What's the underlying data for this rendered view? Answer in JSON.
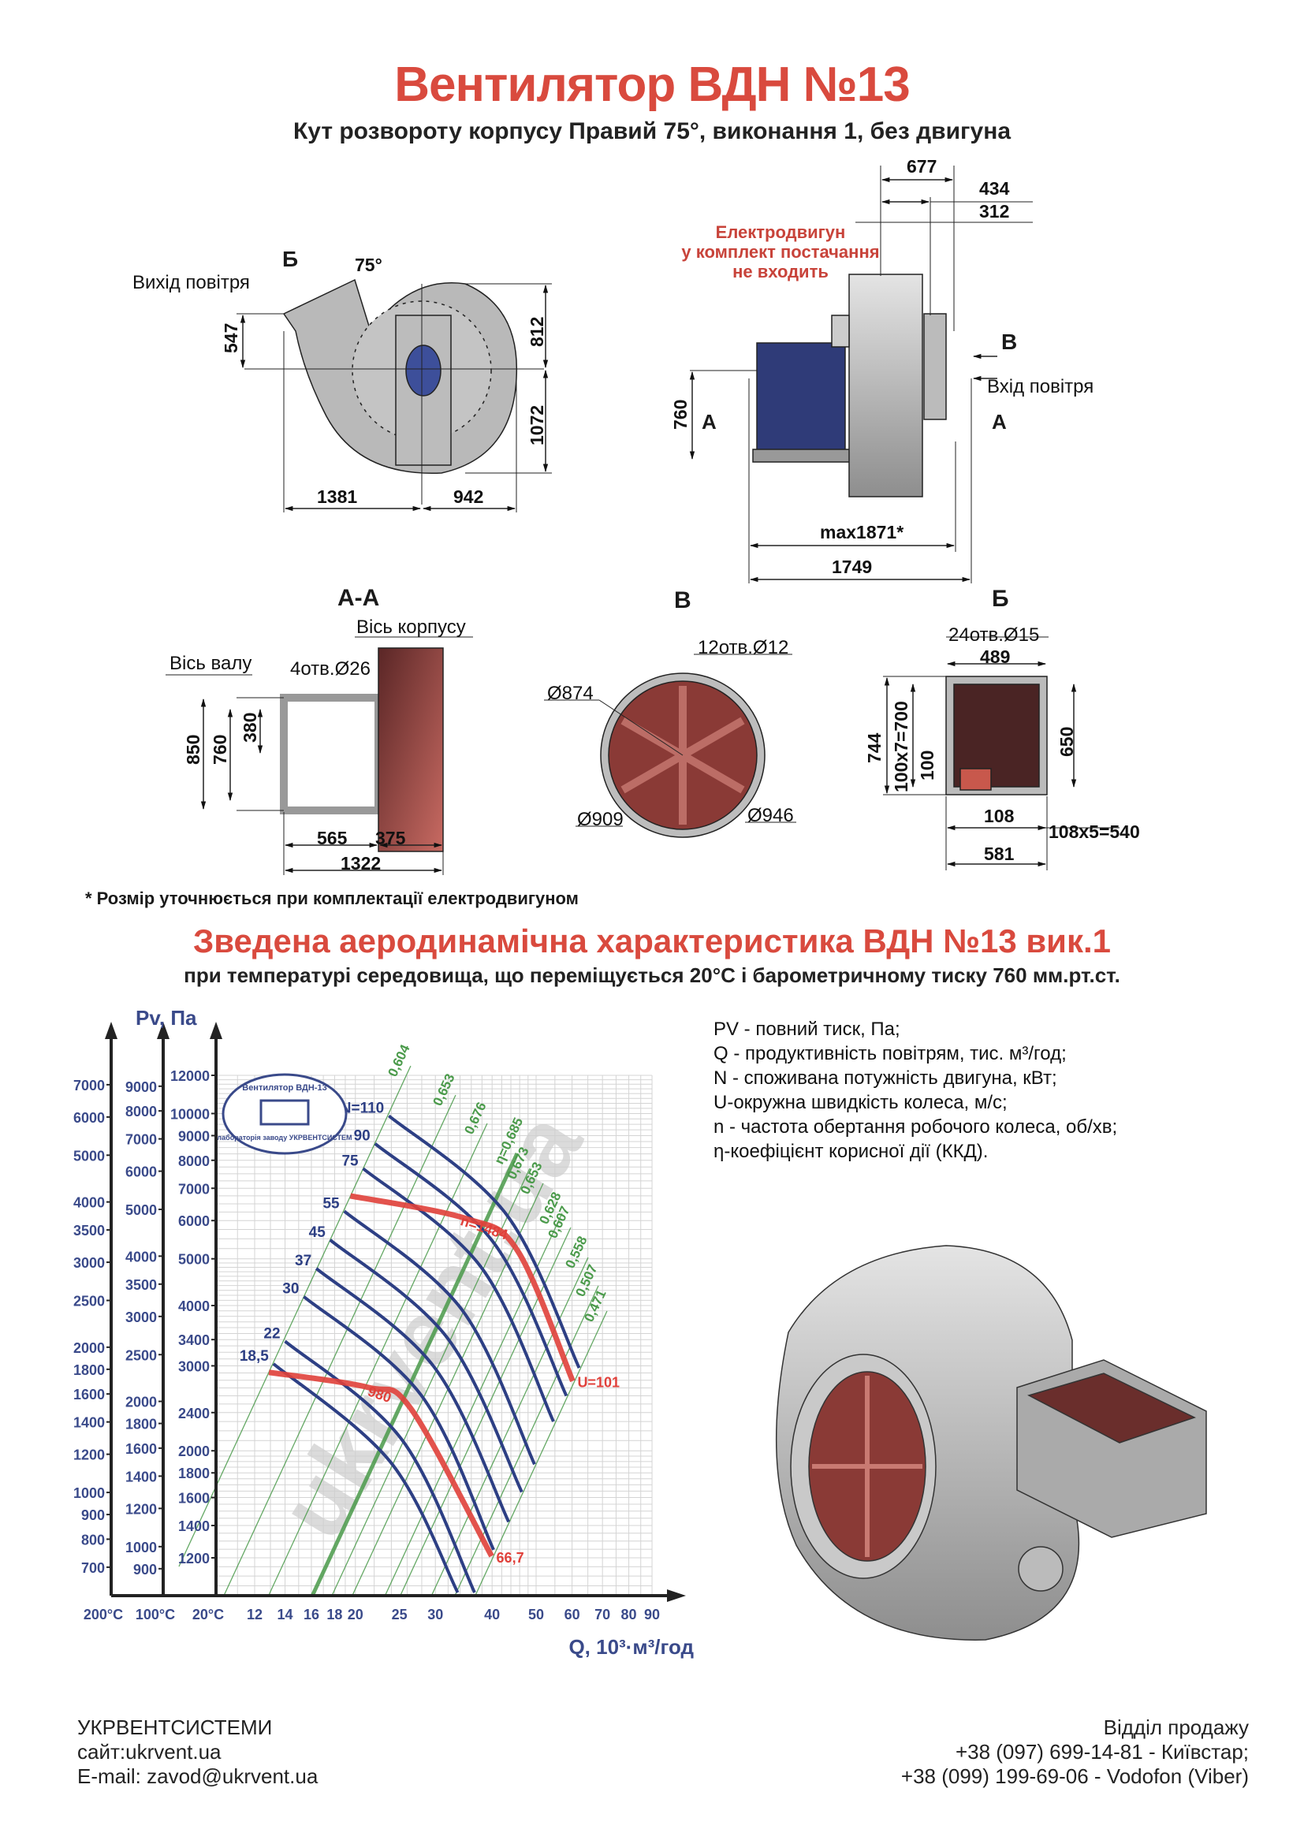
{
  "header": {
    "title": "Вентилятор  ВДН №13",
    "subtitle": "Кут розвороту корпусу Правий 75°, виконання 1, без двигуна"
  },
  "front_view": {
    "outlet_label": "Вихід повітря",
    "section_mark": "Б",
    "angle": "75°",
    "dims": {
      "d547": "547",
      "d812": "812",
      "d1072": "1072",
      "d1381": "1381",
      "d942": "942"
    }
  },
  "side_view": {
    "motor_note": [
      "Електродвигун",
      "у комплект постачання",
      "не входить"
    ],
    "inlet_label": "Вхід повітря",
    "section_b": "В",
    "section_a": "А",
    "dims": {
      "d677": "677",
      "d434": "434",
      "d312": "312",
      "d760": "760",
      "max": "max1871*",
      "d1749": "1749"
    }
  },
  "section_aa": {
    "title": "А-А",
    "housing_axis": "Вісь корпусу",
    "shaft_axis": "Вісь валу",
    "holes": "4отв.Ø26",
    "dims": {
      "d850": "850",
      "d760": "760",
      "d380": "380",
      "d565": "565",
      "d375": "375",
      "d1322": "1322"
    }
  },
  "section_b": {
    "title": "В",
    "holes": "12отв.Ø12",
    "d874": "Ø874",
    "d909": "Ø909",
    "d946": "Ø946"
  },
  "section_bb": {
    "title": "Б",
    "holes": "24отв.Ø15",
    "dims": {
      "d489": "489",
      "d744": "744",
      "d700": "100x7=700",
      "d100": "100",
      "d650": "650",
      "d108": "108",
      "d540": "108x5=540",
      "d581": "581"
    }
  },
  "footnote": "* Розмір уточнюється при комплектації електродвигуном",
  "chart_section": {
    "title": "Зведена аеродинамічна характеристика ВДН №13 вик.1",
    "subtitle": "при температурі середовища, що переміщується 20°С і барометричному тиску 760 мм.рт.ст."
  },
  "stamp": {
    "top": "Вентилятор ВДН-13",
    "bottom": "лабораторія заводу УКРВЕНТСИСТЕМ"
  },
  "watermark": "ukrvent.ua",
  "chart_data": {
    "type": "line",
    "x_label": "Q, 10³·м³/год",
    "y_label": "Pv, Па",
    "x_scale": "log",
    "y_scale": "log",
    "xlim": [
      10,
      90
    ],
    "ylim": [
      1000,
      12000
    ],
    "grid": true,
    "x_ticks": [
      12,
      14,
      16,
      18,
      20,
      25,
      30,
      40,
      50,
      60,
      70,
      80,
      90
    ],
    "y_axes": [
      {
        "temperature": "200°С",
        "ticks": [
          7000,
          6000,
          5000,
          4000,
          3500,
          3000,
          2500,
          2000,
          1800,
          1600,
          1400,
          1200,
          1000,
          900,
          800,
          700
        ]
      },
      {
        "temperature": "100°С",
        "ticks": [
          9000,
          8000,
          7000,
          6000,
          5000,
          4000,
          3500,
          3000,
          2500,
          2000,
          1800,
          1600,
          1400,
          1200,
          1000,
          900
        ]
      },
      {
        "temperature": "20°С",
        "ticks": [
          12000,
          10000,
          9000,
          8000,
          7000,
          6000,
          5000,
          4000,
          3400,
          3000,
          2400,
          2000,
          1800,
          1600,
          1400,
          1200
        ]
      }
    ],
    "power_curves": [
      {
        "label": "N=110",
        "points": [
          [
            23.7,
            9890
          ],
          [
            43.0,
            6180
          ],
          [
            62.2,
            2970
          ]
        ]
      },
      {
        "label": "90",
        "points": [
          [
            22.1,
            8660
          ],
          [
            40.2,
            5420
          ],
          [
            58.3,
            2600
          ]
        ]
      },
      {
        "label": "75",
        "points": [
          [
            20.8,
            7690
          ],
          [
            37.8,
            4810
          ],
          [
            54.6,
            2300
          ]
        ]
      },
      {
        "label": "55",
        "points": [
          [
            18.9,
            6275
          ],
          [
            34.3,
            3925
          ],
          [
            49.6,
            1875
          ]
        ]
      },
      {
        "label": "45",
        "points": [
          [
            17.6,
            5470
          ],
          [
            31.9,
            3425
          ],
          [
            46.5,
            1643
          ]
        ]
      },
      {
        "label": "37",
        "points": [
          [
            16.4,
            4775
          ],
          [
            29.8,
            2985
          ],
          [
            43.5,
            1425
          ]
        ]
      },
      {
        "label": "30",
        "points": [
          [
            15.4,
            4173
          ],
          [
            27.9,
            2610
          ],
          [
            40.3,
            1247
          ]
        ]
      },
      {
        "label": "22",
        "points": [
          [
            14.0,
            3373
          ],
          [
            25.3,
            2111
          ],
          [
            36.6,
            1017
          ]
        ]
      },
      {
        "label": "18,5",
        "points": [
          [
            13.2,
            3029
          ],
          [
            23.9,
            1895
          ],
          [
            33.6,
            1017
          ]
        ]
      }
    ],
    "speed_curves": [
      {
        "label": "n=1484",
        "end_label": "U=101",
        "points": [
          [
            19.5,
            6750
          ],
          [
            35.0,
            6060
          ],
          [
            45.5,
            5200
          ],
          [
            60.2,
            2790
          ]
        ]
      },
      {
        "label": "980",
        "end_label": "66,7",
        "points": [
          [
            12.9,
            2908
          ],
          [
            21.3,
            2707
          ],
          [
            26.5,
            2445
          ],
          [
            39.9,
            1210
          ]
        ]
      }
    ],
    "efficiency_lines": [
      "0,604",
      "0,653",
      "0,676",
      "η=0,685",
      "0,673",
      "0,653",
      "0,628",
      "0,607",
      "0,558",
      "0,507",
      "0,471"
    ],
    "colors": {
      "power": "#2d3f84",
      "speed": "#e0403a",
      "efficiency": "#4a9a4a",
      "axis": "#3a4a8a"
    }
  },
  "legend": [
    "PV - повний тиск, Па;",
    "Q - продуктивність повітрям, тис. м³/год;",
    "N - споживана потужність двигуна, кВт;",
    "U-окружна швидкість колеса, м/с;",
    "n - частота обертання робочого колеса, об/хв;",
    "η-коефіцієнт корисної дії (ККД)."
  ],
  "footer": {
    "company": "УКРВЕНТСИСТЕМИ",
    "site": "сайт:ukrvent.ua",
    "email": "E-mail: zavod@ukrvent.ua",
    "sales": "Відділ продажу",
    "phone1": "+38 (097) 699-14-81 - Київстар;",
    "phone2": "+38 (099) 199-69-06 - Vodofon (Viber)"
  }
}
